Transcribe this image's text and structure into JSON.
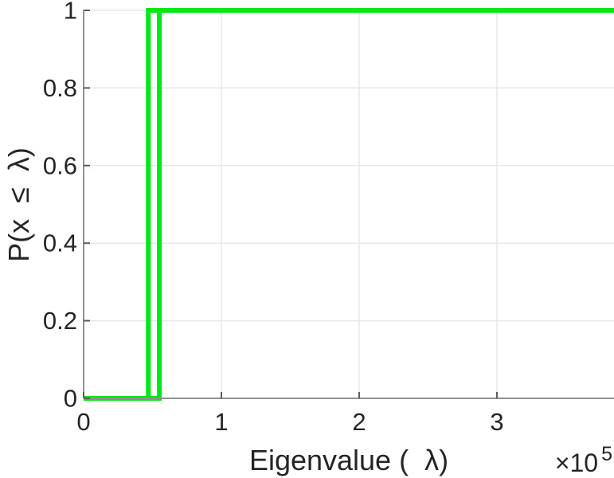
{
  "chart_data": {
    "type": "line",
    "subtype": "empirical-cdf-step",
    "title": "",
    "xlabel": "Eigenvalue (  λ)",
    "ylabel": "P(x  ≤  λ)",
    "x_offset_label": {
      "base": "×10",
      "exponent": "5"
    },
    "xlim": [
      0,
      3.85
    ],
    "ylim": [
      0,
      1
    ],
    "xticks": [
      0,
      1,
      2,
      3
    ],
    "xtick_labels": [
      "0",
      "1",
      "2",
      "3"
    ],
    "yticks": [
      0,
      0.2,
      0.4,
      0.6,
      0.8,
      1
    ],
    "ytick_labels": [
      "0",
      "0.2",
      "0.4",
      "0.6",
      "0.8",
      "1"
    ],
    "grid": true,
    "legend": null,
    "x_units_note": "x values in multiples of 1e5",
    "series": [
      {
        "name": "cdf-step-1",
        "color": "#00e915",
        "line_width": 6,
        "jump_at": 0.47,
        "x": [
          0,
          0.47,
          0.47,
          3.85
        ],
        "y": [
          0,
          0,
          1,
          1
        ]
      },
      {
        "name": "cdf-step-2",
        "color": "#00e915",
        "line_width": 6,
        "jump_at": 0.55,
        "x": [
          0,
          0.55,
          0.55,
          3.85
        ],
        "y": [
          0,
          0,
          1,
          1
        ]
      }
    ],
    "colors": {
      "line": "#00e915",
      "axis": "#919191",
      "tick": "#5c5c5c",
      "grid": "#e8e8e8",
      "text": "#252525",
      "background": "#ffffff"
    }
  }
}
